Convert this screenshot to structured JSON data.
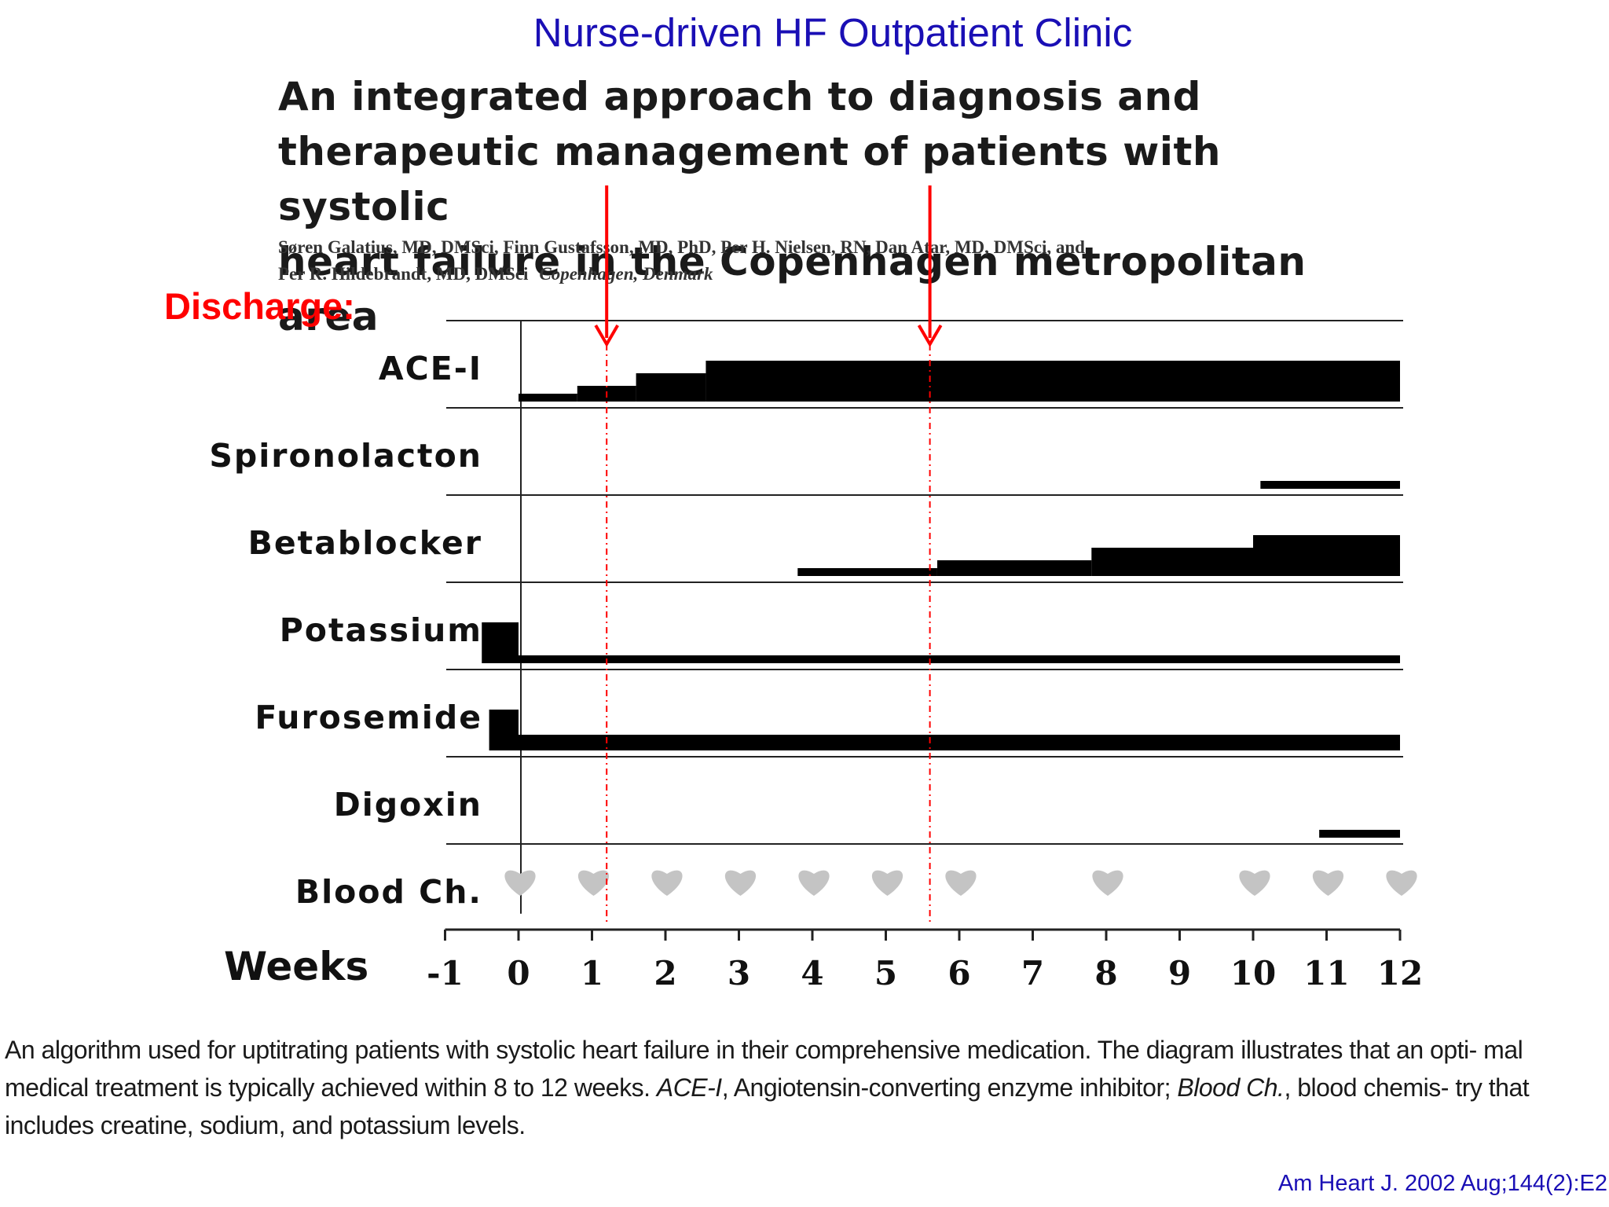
{
  "slide": {
    "title": "Nurse-driven HF Outpatient Clinic",
    "paper_title": [
      "An integrated approach to diagnosis and",
      "therapeutic management of patients with systolic",
      "heart failure in the Copenhagen metropolitan area"
    ],
    "authors_line1": "Søren Galatius, MD, DMSci, Finn Gustafsson, MD, PhD, Per H. Nielsen, RN, Dan Atar, MD, DMSci, and",
    "authors_line2": "Per R. Hildebrandt, MD, DMSci",
    "location": "Copenhagen, Denmark",
    "discharge_label": "Discharge:",
    "caption_parts": [
      "An algorithm used for uptitrating patients with systolic heart failure in their comprehensive medication. The diagram illustrates that an opti- mal medical treatment is typically achieved within 8 to 12 weeks. ",
      "ACE-I",
      ", Angiotensin-converting enzyme inhibitor; ",
      "Blood Ch.",
      ", blood chemis- try that includes creatine, sodium, and potassium levels."
    ],
    "citation": "Am Heart J. 2002 Aug;144(2):E2"
  },
  "colors": {
    "title_blue": "#1a0fb5",
    "marker_red": "#ff0000",
    "bar_black": "#000000",
    "heart_gray": "#c4c4c4"
  },
  "chart_data": {
    "type": "gantt",
    "xlabel": "Weeks",
    "xlim": [
      -1,
      12
    ],
    "xticks": [
      -1,
      0,
      1,
      2,
      3,
      4,
      5,
      6,
      7,
      8,
      9,
      10,
      11,
      12
    ],
    "tick_labels": [
      "-1",
      "0",
      "1",
      "2",
      "3",
      "4",
      "5",
      "6",
      "7",
      "8",
      "9",
      "10",
      "11",
      "12"
    ],
    "rows": [
      {
        "name": "ACE-I",
        "steps": [
          {
            "start": 0,
            "end": 0.8,
            "level": 1
          },
          {
            "start": 0.8,
            "end": 1.6,
            "level": 2
          },
          {
            "start": 1.6,
            "end": 2.55,
            "level": 3
          },
          {
            "start": 2.55,
            "end": 12,
            "level": 4
          }
        ]
      },
      {
        "name": "Spironolacton",
        "steps": [
          {
            "start": 10.1,
            "end": 12,
            "level": 1
          }
        ]
      },
      {
        "name": "Betablocker",
        "steps": [
          {
            "start": 3.8,
            "end": 5.7,
            "level": 1
          },
          {
            "start": 5.7,
            "end": 7.8,
            "level": 2
          },
          {
            "start": 7.8,
            "end": 10,
            "level": 3
          },
          {
            "start": 10,
            "end": 12,
            "level": 4
          }
        ]
      },
      {
        "name": "Potassium",
        "steps": [
          {
            "start": -0.5,
            "end": 0,
            "level": 4
          },
          {
            "start": 0,
            "end": 12,
            "level": 1
          }
        ]
      },
      {
        "name": "Furosemide",
        "steps": [
          {
            "start": -0.4,
            "end": 0,
            "level": 4
          },
          {
            "start": 0,
            "end": 12,
            "level": 2
          }
        ]
      },
      {
        "name": "Digoxin",
        "steps": [
          {
            "start": 10.9,
            "end": 12,
            "level": 1
          }
        ]
      },
      {
        "name": "Blood Ch.",
        "steps": []
      }
    ],
    "blood_chemistry_weeks": [
      0,
      1,
      2,
      3,
      4,
      5,
      6,
      8,
      10,
      11,
      12
    ],
    "discharge_markers_weeks": [
      1.2,
      5.6
    ],
    "grid": false,
    "legend": "none"
  }
}
